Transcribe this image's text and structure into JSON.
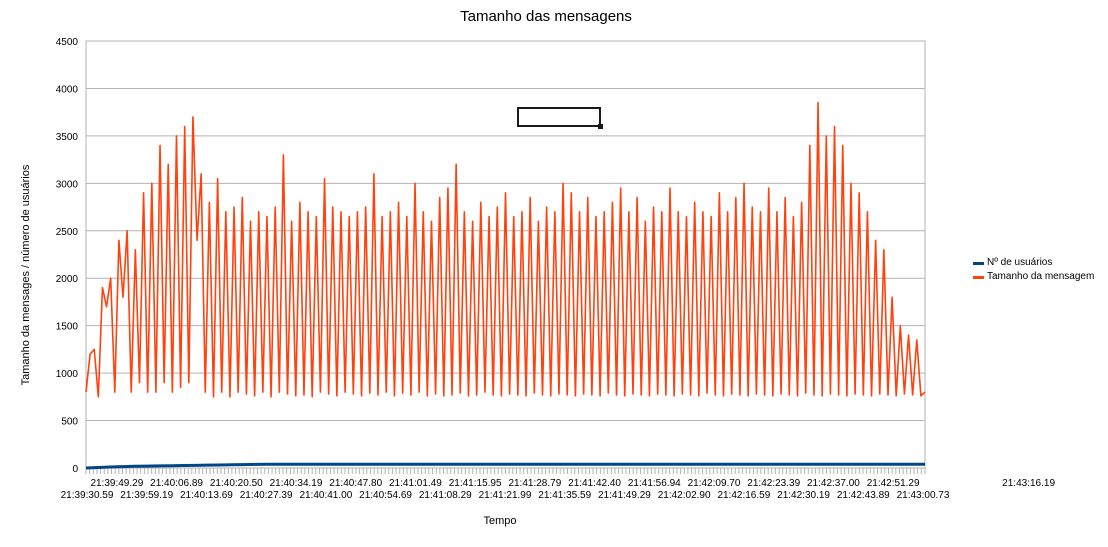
{
  "chart_data": {
    "type": "line",
    "title": "Tamanho das mensagens",
    "xlabel": "Tempo",
    "ylabel": "Tamanho da mensages / número de usuários",
    "ylim": [
      0,
      4500
    ],
    "yticks": [
      0,
      500,
      1000,
      1500,
      2000,
      2500,
      3000,
      3500,
      4000,
      4500
    ],
    "grid": true,
    "legend_position": "right",
    "x_tick_labels_row1": [
      "21:39:49.29",
      "21:40:06.89",
      "21:40:20.50",
      "21:40:34.19",
      "21:40:47.80",
      "21:41:01.49",
      "21:41:15.95",
      "21:41:28.79",
      "21:41:42.40",
      "21:41:56.94",
      "21:42:09.70",
      "21:42:23.39",
      "21:42:37.00",
      "21:42:51.29"
    ],
    "x_tick_labels_row2": [
      "21:39:30.59",
      "21:39:59.19",
      "21:40:13.69",
      "21:40:27.39",
      "21:40:41.00",
      "21:40:54.69",
      "21:41:08.29",
      "21:41:21.99",
      "21:41:35.59",
      "21:41:49.29",
      "21:42:02.90",
      "21:42:16.59",
      "21:42:30.19",
      "21:42:43.89",
      "21:43:00.73"
    ],
    "x_tick_label_last_row1": "21:43:16.19",
    "series": [
      {
        "name": "Nº de usuários",
        "color": "#004586",
        "values": [
          0,
          5,
          10,
          15,
          18,
          20,
          22,
          24,
          26,
          28,
          30,
          32,
          34,
          36,
          38,
          40,
          40,
          40,
          40,
          40,
          40,
          40,
          40,
          40,
          40,
          40,
          40,
          40,
          40,
          40,
          40,
          40,
          40,
          40,
          40,
          40,
          40,
          40,
          40,
          40,
          40,
          40,
          40,
          40,
          40,
          40,
          40,
          40,
          40,
          40,
          40,
          40,
          40,
          40,
          40,
          40,
          40,
          40,
          40,
          40,
          40,
          40,
          40,
          40,
          40,
          40,
          40,
          40,
          40,
          40
        ]
      },
      {
        "name": "Tamanho da mensagem",
        "color": "#ff420e",
        "values": [
          800,
          1200,
          1250,
          750,
          1900,
          1700,
          2000,
          800,
          2400,
          1800,
          2500,
          800,
          2300,
          900,
          2900,
          800,
          3000,
          800,
          3400,
          900,
          3200,
          800,
          3500,
          850,
          3600,
          900,
          3700,
          2400,
          3100,
          800,
          2800,
          750,
          3050,
          800,
          2700,
          750,
          2750,
          800,
          2850,
          780,
          2600,
          760,
          2700,
          800,
          2650,
          750,
          2750,
          800,
          3300,
          780,
          2600,
          760,
          2800,
          770,
          2700,
          750,
          2650,
          800,
          3050,
          780,
          2750,
          760,
          2700,
          800,
          2650,
          780,
          2700,
          760,
          2750,
          790,
          3100,
          770,
          2650,
          800,
          2700,
          760,
          2800,
          790,
          2650,
          770,
          3000,
          800,
          2700,
          760,
          2600,
          780,
          2850,
          760,
          2950,
          770,
          3200,
          790,
          2700,
          760,
          2600,
          770,
          2800,
          800,
          2650,
          770,
          2750,
          760,
          2900,
          780,
          2650,
          770,
          2700,
          760,
          2850,
          790,
          2600,
          770,
          2750,
          760,
          2700,
          780,
          3000,
          770,
          2900,
          760,
          2700,
          780,
          2850,
          770,
          2650,
          760,
          2700,
          790,
          2800,
          770,
          2950,
          760,
          2700,
          780,
          2850,
          770,
          2600,
          760,
          2750,
          780,
          2700,
          770,
          2950,
          760,
          2700,
          780,
          2650,
          770,
          2800,
          760,
          2700,
          790,
          2650,
          770,
          2900,
          760,
          2700,
          780,
          2850,
          770,
          3000,
          760,
          2750,
          780,
          2700,
          770,
          2950,
          760,
          2700,
          780,
          2850,
          770,
          2650,
          760,
          2800,
          790,
          3400,
          770,
          3850,
          760,
          3500,
          780,
          3600,
          770,
          3400,
          760,
          3000,
          780,
          2900,
          770,
          2700,
          760,
          2400,
          780,
          2300,
          770,
          1800,
          760,
          1500,
          780,
          1400,
          770,
          1350,
          760,
          800
        ]
      }
    ]
  }
}
